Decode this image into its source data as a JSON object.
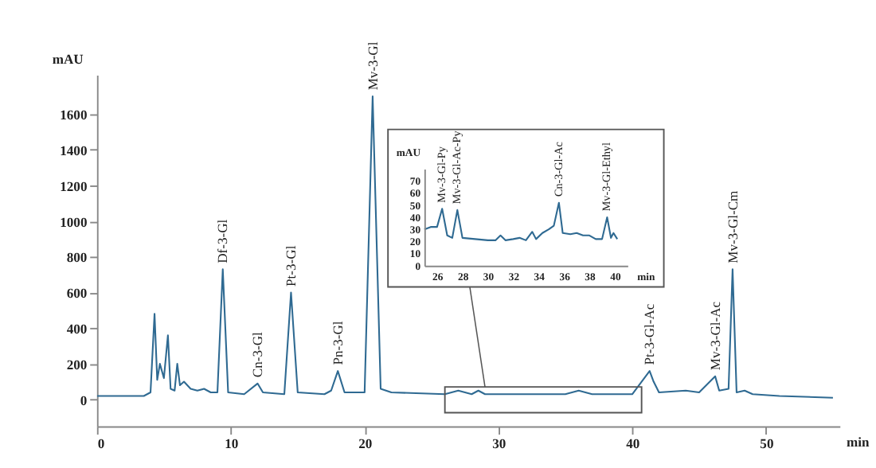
{
  "chart_data": [
    {
      "type": "line",
      "xlabel": "min",
      "ylabel": "mAU",
      "xlim": [
        0,
        55.5
      ],
      "ylim": [
        -150,
        1820
      ],
      "xticks": [
        0,
        10,
        20,
        30,
        40,
        50
      ],
      "yticks": [
        0,
        200,
        400,
        600,
        800,
        1000,
        1200,
        1400,
        1600
      ],
      "grid": false,
      "marker": "none",
      "line_style": "solid",
      "series": [
        {
          "color": "#2f6a92",
          "x": [
            0,
            2,
            3.5,
            4.0,
            4.3,
            4.5,
            4.7,
            5.0,
            5.3,
            5.5,
            5.8,
            6.0,
            6.2,
            6.5,
            7,
            7.5,
            8,
            8.5,
            9.0,
            9.4,
            9.8,
            11,
            12,
            12.4,
            14,
            14.5,
            15,
            17,
            17.5,
            18,
            18.5,
            20,
            20.6,
            21.2,
            22,
            26,
            27,
            28,
            28.5,
            29,
            35,
            36,
            37,
            40,
            41.3,
            41.6,
            42,
            44,
            45,
            46.2,
            46.5,
            47.2,
            47.5,
            47.8,
            48.4,
            49,
            51,
            55
          ],
          "values": [
            20,
            20,
            20,
            40,
            480,
            110,
            200,
            120,
            360,
            60,
            50,
            200,
            80,
            100,
            60,
            50,
            60,
            40,
            40,
            730,
            40,
            30,
            90,
            40,
            30,
            600,
            40,
            30,
            50,
            160,
            40,
            40,
            1700,
            60,
            40,
            30,
            50,
            30,
            50,
            30,
            30,
            50,
            30,
            30,
            160,
            100,
            40,
            50,
            40,
            130,
            50,
            60,
            730,
            40,
            50,
            30,
            20,
            10
          ]
        }
      ],
      "annotations": [
        {
          "text": "Df-3-Gl",
          "x": 9.4,
          "y": 730
        },
        {
          "text": "Cn-3-Gl",
          "x": 12,
          "y": 90
        },
        {
          "text": "Pt-3-Gl",
          "x": 14.5,
          "y": 600
        },
        {
          "text": "Pn-3-Gl",
          "x": 18,
          "y": 160
        },
        {
          "text": "Mv-3-Gl",
          "x": 20.6,
          "y": 1700
        },
        {
          "text": "Pt-3-Gl-Ac",
          "x": 41.3,
          "y": 160
        },
        {
          "text": "Mv-3-Gl-Ac",
          "x": 46.2,
          "y": 130
        },
        {
          "text": "Mv-3-Gl-Cm",
          "x": 47.5,
          "y": 730
        }
      ]
    },
    {
      "type": "line",
      "xlabel": "min",
      "ylabel": "mAU",
      "xlim": [
        25,
        41
      ],
      "ylim": [
        0,
        80
      ],
      "xticks": [
        26,
        28,
        30,
        32,
        34,
        36,
        38,
        40
      ],
      "yticks": [
        0,
        10,
        20,
        30,
        40,
        50,
        60,
        70
      ],
      "grid": false,
      "marker": "none",
      "line_style": "solid",
      "series": [
        {
          "color": "#2f6a92",
          "x": [
            25,
            25.5,
            26,
            26.4,
            26.8,
            27.2,
            27.6,
            28,
            29,
            30,
            30.6,
            31,
            31.4,
            32,
            32.5,
            33,
            33.5,
            33.8,
            34.3,
            34.8,
            35.2,
            35.6,
            35.9,
            36.5,
            37,
            37.5,
            38,
            38.5,
            39,
            39.4,
            39.7,
            39.9,
            40.2
          ],
          "values": [
            30,
            32,
            32,
            47,
            25,
            23,
            46,
            23,
            22,
            21,
            21,
            25,
            21,
            22,
            23,
            21,
            28,
            22,
            27,
            30,
            33,
            52,
            27,
            26,
            27,
            25,
            25,
            22,
            22,
            40,
            23,
            27,
            22
          ]
        }
      ],
      "annotations": [
        {
          "text": "Mv-3-Gl-Py",
          "x": 26.4,
          "y": 47
        },
        {
          "text": "Mv-3-Gl-Ac-Py",
          "x": 27.6,
          "y": 46
        },
        {
          "text": "Cn-3-Gl-Ac",
          "x": 35.6,
          "y": 52
        },
        {
          "text": "Mv-3-Gl-Ethyl",
          "x": 39.4,
          "y": 40
        }
      ]
    }
  ]
}
